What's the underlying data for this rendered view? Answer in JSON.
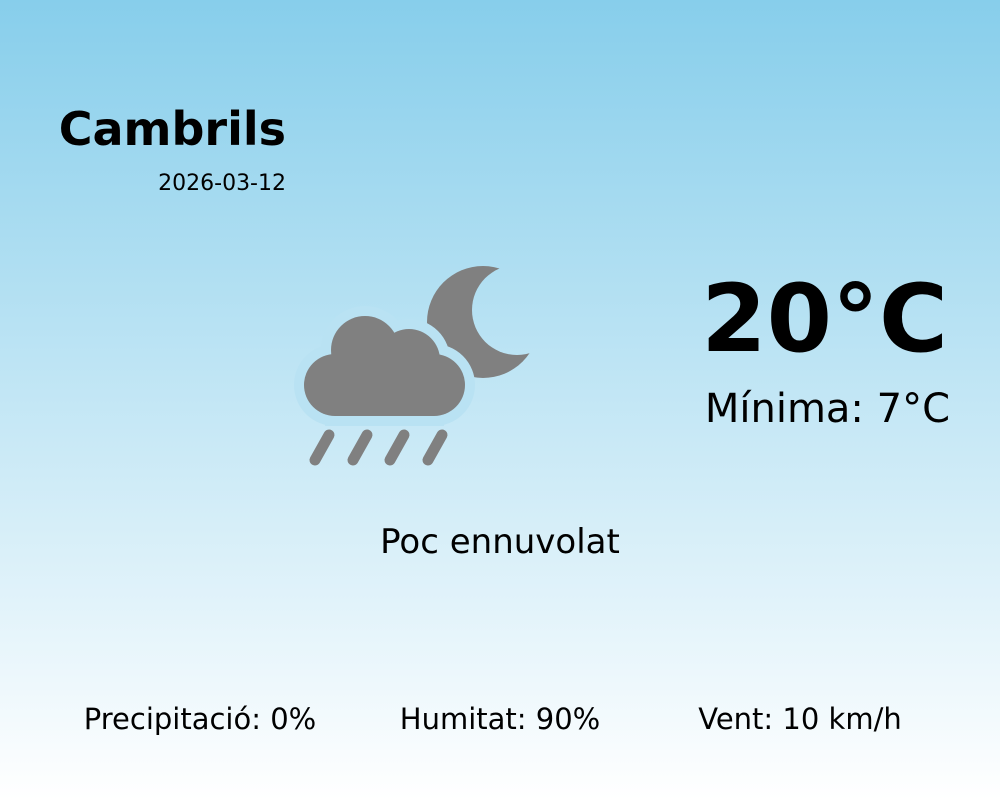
{
  "location": {
    "city": "Cambrils",
    "date": "2026-03-12"
  },
  "weather": {
    "temperature": "20°C",
    "minimum": "Mínima: 7°C",
    "condition": "Poc ennuvolat",
    "icon": "cloud-moon-rain-icon",
    "icon_color": "#808080"
  },
  "stats": {
    "precipitation": "Precipitació: 0%",
    "humidity": "Humitat: 90%",
    "wind": "Vent: 10 km/h"
  },
  "colors": {
    "background_top": "#87ceeb",
    "background_bottom": "#ffffff"
  }
}
